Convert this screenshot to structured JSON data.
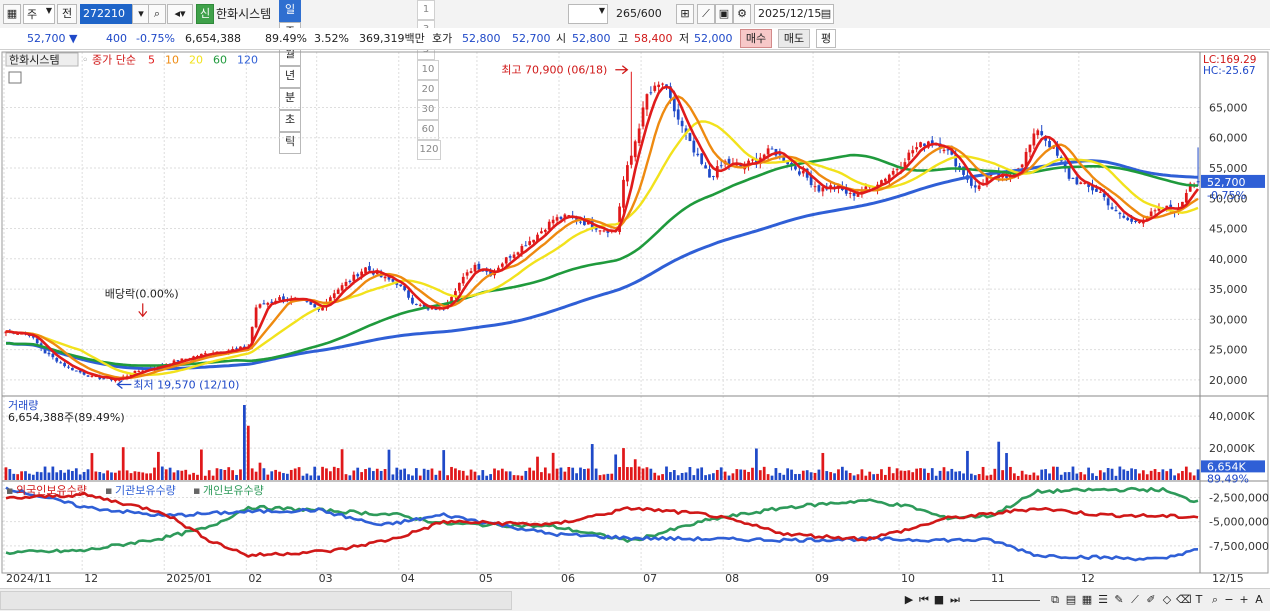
{
  "toolbar": {
    "market": "주",
    "prev": "전",
    "code": "272210",
    "new_badge": "신",
    "name": "한화시스템",
    "periods": [
      "일",
      "주",
      "월",
      "년",
      "분",
      "초",
      "틱"
    ],
    "active_period": "일",
    "numbers": [
      "1",
      "3",
      "5",
      "10",
      "20",
      "30",
      "60",
      "120"
    ],
    "count": "265",
    "count_total": "/600",
    "date": "2025/12/15"
  },
  "quote": {
    "price": "52,700",
    "arrow": "▼",
    "change": "400",
    "change_pct": "-0.75%",
    "volume": "6,654,388",
    "vol_ratio": "89.49%",
    "turnover": "3.52%",
    "amount": "369,319백만",
    "ask_label": "호가",
    "ask1": "52,800",
    "ask2": "52,700",
    "open_label": "시",
    "open": "52,800",
    "high_label": "고",
    "high": "58,400",
    "low_label": "저",
    "low": "52,000",
    "buy": "매수",
    "sell": "매도",
    "pyeong": "평"
  },
  "chart_data": {
    "type": "candlestick",
    "title": "한화시스템",
    "price_legend": {
      "label": "종가 단순",
      "mas": [
        "5",
        "10",
        "20",
        "60",
        "120"
      ]
    },
    "ma_colors": {
      "5": "#e01b1b",
      "10": "#ee8a10",
      "20": "#f2e21c",
      "60": "#1f9a3c",
      "120": "#2f5fd6"
    },
    "price_axis": {
      "min": 17500,
      "max": 73500,
      "ticks": [
        20000,
        25000,
        30000,
        35000,
        40000,
        45000,
        50000,
        55000,
        60000,
        65000
      ]
    },
    "right_labels": {
      "lc": "LC:169.29",
      "hc": "HC:-25.67",
      "last_price": "52,700",
      "last_pct": "-0.75%"
    },
    "annotations": {
      "high": "최고 70,900 (06/18)",
      "low": "최저 19,570 (12/10)",
      "dividend": "배당락(0.00%)"
    },
    "x_labels": [
      "2024/11",
      "12",
      "2025/01",
      "02",
      "03",
      "04",
      "05",
      "06",
      "07",
      "08",
      "09",
      "10",
      "11",
      "12"
    ],
    "x_right_label": "12/15",
    "close_anchors": [
      [
        0,
        28000
      ],
      [
        6,
        27500
      ],
      [
        10,
        24500
      ],
      [
        16,
        22000
      ],
      [
        22,
        20500
      ],
      [
        28,
        20000
      ],
      [
        34,
        21500
      ],
      [
        40,
        22500
      ],
      [
        46,
        23500
      ],
      [
        52,
        24500
      ],
      [
        58,
        25000
      ],
      [
        62,
        25500
      ],
      [
        64,
        32000
      ],
      [
        70,
        33500
      ],
      [
        76,
        33000
      ],
      [
        80,
        31500
      ],
      [
        84,
        34500
      ],
      [
        88,
        36500
      ],
      [
        92,
        38500
      ],
      [
        96,
        37000
      ],
      [
        100,
        36000
      ],
      [
        104,
        33000
      ],
      [
        108,
        31500
      ],
      [
        112,
        32000
      ],
      [
        116,
        36000
      ],
      [
        120,
        39000
      ],
      [
        124,
        37500
      ],
      [
        128,
        40000
      ],
      [
        132,
        42000
      ],
      [
        136,
        44000
      ],
      [
        140,
        46500
      ],
      [
        144,
        47000
      ],
      [
        148,
        46000
      ],
      [
        152,
        45000
      ],
      [
        156,
        44500
      ],
      [
        158,
        53000
      ],
      [
        160,
        57000
      ],
      [
        164,
        67000
      ],
      [
        168,
        69000
      ],
      [
        172,
        63000
      ],
      [
        176,
        57500
      ],
      [
        180,
        53500
      ],
      [
        184,
        56000
      ],
      [
        188,
        55000
      ],
      [
        192,
        56500
      ],
      [
        196,
        58000
      ],
      [
        200,
        56000
      ],
      [
        204,
        54000
      ],
      [
        208,
        51500
      ],
      [
        212,
        52000
      ],
      [
        216,
        50500
      ],
      [
        220,
        51500
      ],
      [
        224,
        53000
      ],
      [
        228,
        55000
      ],
      [
        232,
        58000
      ],
      [
        236,
        59500
      ],
      [
        240,
        58500
      ],
      [
        244,
        55000
      ],
      [
        248,
        51500
      ],
      [
        252,
        54000
      ],
      [
        256,
        53000
      ],
      [
        260,
        56000
      ],
      [
        264,
        61500
      ],
      [
        268,
        58000
      ],
      [
        272,
        53500
      ],
      [
        276,
        52000
      ],
      [
        280,
        51000
      ],
      [
        284,
        47500
      ],
      [
        288,
        46000
      ],
      [
        292,
        47000
      ],
      [
        296,
        48500
      ],
      [
        300,
        48000
      ],
      [
        303,
        52700
      ]
    ],
    "volume_panel": {
      "label": "거래량",
      "last_label": "6,654,388주(89.49%)",
      "ticks": [
        "40,000K",
        "20,000K"
      ],
      "last": "6,654K",
      "last_pct": "89.49%",
      "max": 47000
    },
    "holdings_panel": {
      "series": [
        {
          "name": "외국인보유수량",
          "color": "#d01818"
        },
        {
          "name": "기관보유수량",
          "color": "#2f5fd6"
        },
        {
          "name": "개인보유수량",
          "color": "#2e9a5a"
        }
      ],
      "ticks": [
        "-2,500,000",
        "-5,000,000",
        "-7,500,000"
      ],
      "foreign": [
        [
          0,
          -2.6
        ],
        [
          20,
          -2.2
        ],
        [
          40,
          -4.0
        ],
        [
          52,
          -6.9
        ],
        [
          62,
          -8.5
        ],
        [
          84,
          -8.0
        ],
        [
          100,
          -6.7
        ],
        [
          112,
          -5.0
        ],
        [
          140,
          -5.3
        ],
        [
          160,
          -3.6
        ],
        [
          180,
          -4.3
        ],
        [
          200,
          -6.3
        ],
        [
          220,
          -6.8
        ],
        [
          232,
          -5.7
        ],
        [
          240,
          -4.7
        ],
        [
          252,
          -4.2
        ],
        [
          264,
          -3.6
        ],
        [
          280,
          -4.3
        ],
        [
          303,
          -4.5
        ]
      ],
      "institution": [
        [
          0,
          -1.5
        ],
        [
          20,
          -3.5
        ],
        [
          40,
          -4.4
        ],
        [
          60,
          -4.0
        ],
        [
          80,
          -3.8
        ],
        [
          96,
          -5.4
        ],
        [
          112,
          -4.3
        ],
        [
          140,
          -6.3
        ],
        [
          160,
          -6.7
        ],
        [
          180,
          -6.8
        ],
        [
          200,
          -6.9
        ],
        [
          220,
          -6.8
        ],
        [
          240,
          -6.9
        ],
        [
          252,
          -6.9
        ],
        [
          264,
          -8.5
        ],
        [
          280,
          -8.7
        ],
        [
          296,
          -8.9
        ],
        [
          303,
          -8.0
        ]
      ],
      "individual": [
        [
          0,
          -8.2
        ],
        [
          20,
          -8.0
        ],
        [
          40,
          -6.7
        ],
        [
          52,
          -5.6
        ],
        [
          62,
          -3.5
        ],
        [
          84,
          -3.9
        ],
        [
          100,
          -4.3
        ],
        [
          112,
          -5.2
        ],
        [
          140,
          -5.5
        ],
        [
          160,
          -7.0
        ],
        [
          180,
          -4.8
        ],
        [
          200,
          -3.5
        ],
        [
          220,
          -2.8
        ],
        [
          232,
          -3.5
        ],
        [
          240,
          -4.6
        ],
        [
          252,
          -4.4
        ],
        [
          264,
          -1.9
        ],
        [
          280,
          -1.7
        ],
        [
          296,
          -1.7
        ],
        [
          303,
          -2.8
        ]
      ],
      "min": -10.0,
      "max": -0.9
    }
  }
}
